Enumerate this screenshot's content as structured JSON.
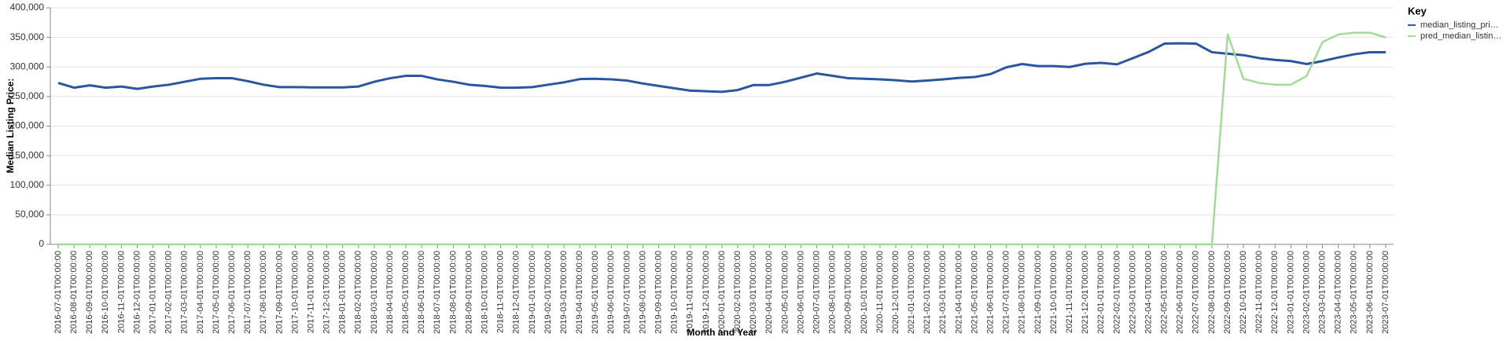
{
  "chart_data": {
    "type": "line",
    "x_label": "Month and Year",
    "y_label": "Median Listing Price:",
    "legend_title": "Key",
    "categories": [
      "2016-07-01T00:00:00",
      "2016-08-01T00:00:00",
      "2016-09-01T00:00:00",
      "2016-10-01T00:00:00",
      "2016-11-01T00:00:00",
      "2016-12-01T00:00:00",
      "2017-01-01T00:00:00",
      "2017-02-01T00:00:00",
      "2017-03-01T00:00:00",
      "2017-04-01T00:00:00",
      "2017-05-01T00:00:00",
      "2017-06-01T00:00:00",
      "2017-07-01T00:00:00",
      "2017-08-01T00:00:00",
      "2017-09-01T00:00:00",
      "2017-10-01T00:00:00",
      "2017-11-01T00:00:00",
      "2017-12-01T00:00:00",
      "2018-01-01T00:00:00",
      "2018-02-01T00:00:00",
      "2018-03-01T00:00:00",
      "2018-04-01T00:00:00",
      "2018-05-01T00:00:00",
      "2018-06-01T00:00:00",
      "2018-07-01T00:00:00",
      "2018-08-01T00:00:00",
      "2018-09-01T00:00:00",
      "2018-10-01T00:00:00",
      "2018-11-01T00:00:00",
      "2018-12-01T00:00:00",
      "2019-01-01T00:00:00",
      "2019-02-01T00:00:00",
      "2019-03-01T00:00:00",
      "2019-04-01T00:00:00",
      "2019-05-01T00:00:00",
      "2019-06-01T00:00:00",
      "2019-07-01T00:00:00",
      "2019-08-01T00:00:00",
      "2019-09-01T00:00:00",
      "2019-10-01T00:00:00",
      "2019-11-01T00:00:00",
      "2019-12-01T00:00:00",
      "2020-01-01T00:00:00",
      "2020-02-01T00:00:00",
      "2020-03-01T00:00:00",
      "2020-04-01T00:00:00",
      "2020-05-01T00:00:00",
      "2020-06-01T00:00:00",
      "2020-07-01T00:00:00",
      "2020-08-01T00:00:00",
      "2020-09-01T00:00:00",
      "2020-10-01T00:00:00",
      "2020-11-01T00:00:00",
      "2020-12-01T00:00:00",
      "2021-01-01T00:00:00",
      "2021-02-01T00:00:00",
      "2021-03-01T00:00:00",
      "2021-04-01T00:00:00",
      "2021-05-01T00:00:00",
      "2021-06-01T00:00:00",
      "2021-07-01T00:00:00",
      "2021-08-01T00:00:00",
      "2021-09-01T00:00:00",
      "2021-10-01T00:00:00",
      "2021-11-01T00:00:00",
      "2021-12-01T00:00:00",
      "2022-01-01T00:00:00",
      "2022-02-01T00:00:00",
      "2022-03-01T00:00:00",
      "2022-04-01T00:00:00",
      "2022-05-01T00:00:00",
      "2022-06-01T00:00:00",
      "2022-07-01T00:00:00",
      "2022-08-01T00:00:00",
      "2022-09-01T00:00:00",
      "2022-10-01T00:00:00",
      "2022-11-01T00:00:00",
      "2022-12-01T00:00:00",
      "2023-01-01T00:00:00",
      "2023-02-01T00:00:00",
      "2023-03-01T00:00:00",
      "2023-04-01T00:00:00",
      "2023-05-01T00:00:00",
      "2023-06-01T00:00:00",
      "2023-07-01T00:00:00"
    ],
    "series": [
      {
        "name": "median_listing_pri…",
        "color": "#2a56a0",
        "values": [
          273000,
          265000,
          269000,
          265000,
          267000,
          263000,
          267000,
          270000,
          275000,
          280000,
          281000,
          281000,
          276000,
          270000,
          266000,
          266000,
          265500,
          265500,
          265500,
          267000,
          275000,
          281000,
          285000,
          285000,
          279000,
          275000,
          270000,
          268000,
          265000,
          265000,
          266000,
          270000,
          274000,
          279500,
          280000,
          279000,
          277000,
          272000,
          268000,
          264000,
          260000,
          259000,
          258000,
          261000,
          269500,
          269500,
          275000,
          282000,
          289000,
          285000,
          281000,
          280000,
          279000,
          277500,
          275500,
          277000,
          279000,
          281500,
          283000,
          288000,
          299500,
          305000,
          301500,
          301500,
          300000,
          305500,
          307000,
          304500,
          315000,
          325500,
          339500,
          340000,
          339500,
          325000,
          322500,
          320000,
          315000,
          312000,
          310000,
          305000,
          310000,
          316000,
          321500,
          325000,
          325000
        ]
      },
      {
        "name": "pred_median_listin…",
        "color": "#a3d99b",
        "values": [
          0,
          0,
          0,
          0,
          0,
          0,
          0,
          0,
          0,
          0,
          0,
          0,
          0,
          0,
          0,
          0,
          0,
          0,
          0,
          0,
          0,
          0,
          0,
          0,
          0,
          0,
          0,
          0,
          0,
          0,
          0,
          0,
          0,
          0,
          0,
          0,
          0,
          0,
          0,
          0,
          0,
          0,
          0,
          0,
          0,
          0,
          0,
          0,
          0,
          0,
          0,
          0,
          0,
          0,
          0,
          0,
          0,
          0,
          0,
          0,
          0,
          0,
          0,
          0,
          0,
          0,
          0,
          0,
          0,
          0,
          0,
          0,
          0,
          0,
          355000,
          280000,
          273000,
          270000,
          270000,
          285000,
          342000,
          355000,
          358000,
          358000,
          350000
        ]
      }
    ],
    "ylim": [
      0,
      400000
    ],
    "yticks": [
      {
        "value": 0,
        "label": "0"
      },
      {
        "value": 50000,
        "label": "50,000"
      },
      {
        "value": 100000,
        "label": "100,000"
      },
      {
        "value": 150000,
        "label": "150,000"
      },
      {
        "value": 200000,
        "label": "200,000"
      },
      {
        "value": 250000,
        "label": "250,000"
      },
      {
        "value": 300000,
        "label": "300,000"
      },
      {
        "value": 350000,
        "label": "350,000"
      },
      {
        "value": 400000,
        "label": "400,000"
      }
    ],
    "grid": true,
    "legend": "right"
  }
}
